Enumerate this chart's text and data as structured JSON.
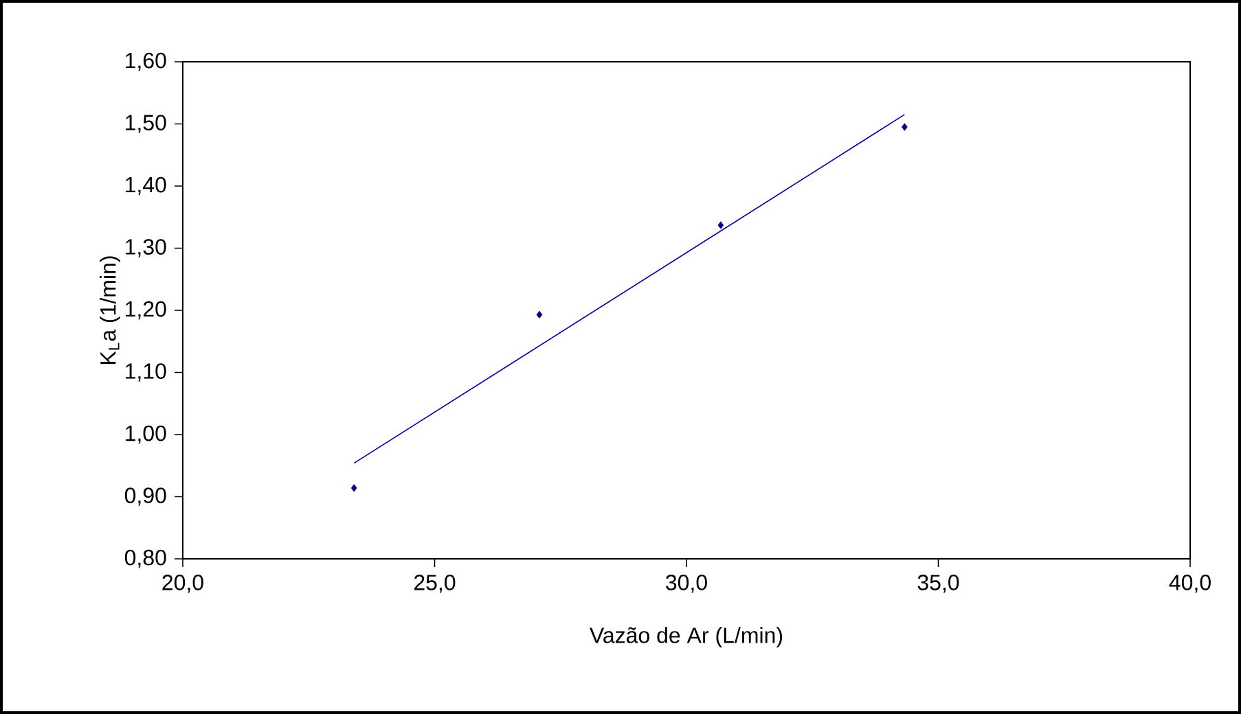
{
  "chart_data": {
    "type": "scatter",
    "xlabel": "Vazão de Ar (L/min)",
    "ylabel": "K$_{L}$a (1/min)",
    "xlim": [
      20,
      40
    ],
    "xticks": [
      {
        "value": 20,
        "label": "20,0"
      },
      {
        "value": 25,
        "label": "25,0"
      },
      {
        "value": 30,
        "label": "30,0"
      },
      {
        "value": 35,
        "label": "35,0"
      },
      {
        "value": 40,
        "label": "40,0"
      }
    ],
    "ylim": [
      0.8,
      1.6
    ],
    "yticks": [
      {
        "value": 0.8,
        "label": "0,80"
      },
      {
        "value": 0.9,
        "label": "0,90"
      },
      {
        "value": 1.0,
        "label": "1,00"
      },
      {
        "value": 1.1,
        "label": "1,10"
      },
      {
        "value": 1.2,
        "label": "1,20"
      },
      {
        "value": 1.3,
        "label": "1,30"
      },
      {
        "value": 1.4,
        "label": "1,40"
      },
      {
        "value": 1.5,
        "label": "1,50"
      },
      {
        "value": 1.6,
        "label": "1,60"
      }
    ],
    "grid": false,
    "series": [
      {
        "color": "#000080",
        "marker": "diamond",
        "x": [
          23.4,
          27.08,
          30.68,
          34.33
        ],
        "values": [
          0.914,
          1.193,
          1.337,
          1.495
        ]
      },
      {
        "type": "line",
        "color": "#0000a0",
        "marker": "none",
        "line_style": "solid",
        "x": [
          23.4,
          34.33
        ],
        "values": [
          0.954,
          1.515
        ]
      }
    ]
  }
}
